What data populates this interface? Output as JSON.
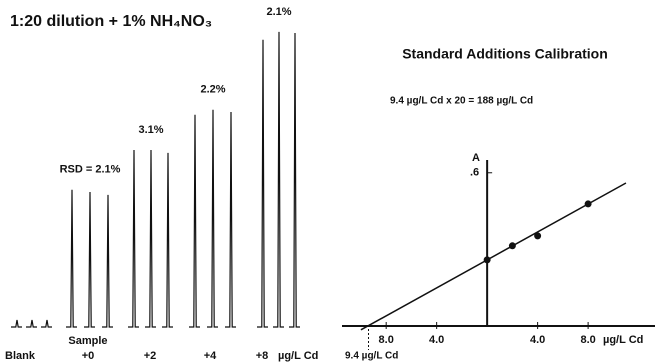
{
  "chart_data": [
    {
      "type": "peaks",
      "title": "1:20 dilution + 1% NH₄NO₃",
      "categories": [
        "Blank",
        "+0",
        "+2",
        "+4",
        "+8"
      ],
      "sample_label": "Sample",
      "unit_label": "µg/L Cd",
      "values": [
        [
          0.0125,
          0.0125,
          0.0125
        ],
        [
          0.245,
          0.241,
          0.236
        ],
        [
          0.316,
          0.316,
          0.311
        ],
        [
          0.379,
          0.388,
          0.384
        ],
        [
          0.513,
          0.527,
          0.525
        ]
      ],
      "rsd_labels": [
        null,
        "RSD = 2.1%",
        "3.1%",
        "2.2%",
        "2.1%"
      ],
      "color": "#111111"
    },
    {
      "type": "scatter",
      "title": "Standard Additions Calibration",
      "annotation": "9.4 µg/L Cd x 20 = 188 µg/L Cd",
      "ylabel": "A",
      "xlabel": "µg/L Cd",
      "intercept_label": "9.4 µg/L Cd",
      "intercept": -9.4,
      "x": [
        0,
        2,
        4,
        8
      ],
      "values": [
        0.259,
        0.314,
        0.353,
        0.478
      ],
      "fit": {
        "x": [
          -10,
          11
        ],
        "values": [
          -0.015,
          0.56
        ]
      },
      "xlim": [
        -11.5,
        13.3
      ],
      "ylim": [
        0,
        0.65
      ],
      "xticks": [
        {
          "value": -8,
          "label": "8.0"
        },
        {
          "value": -4,
          "label": "4.0"
        },
        {
          "value": 4,
          "label": "4.0"
        },
        {
          "value": 8,
          "label": "8.0"
        }
      ],
      "yticks": [
        {
          "value": 0.6,
          "label": ".6"
        }
      ],
      "color": "#111111"
    }
  ]
}
